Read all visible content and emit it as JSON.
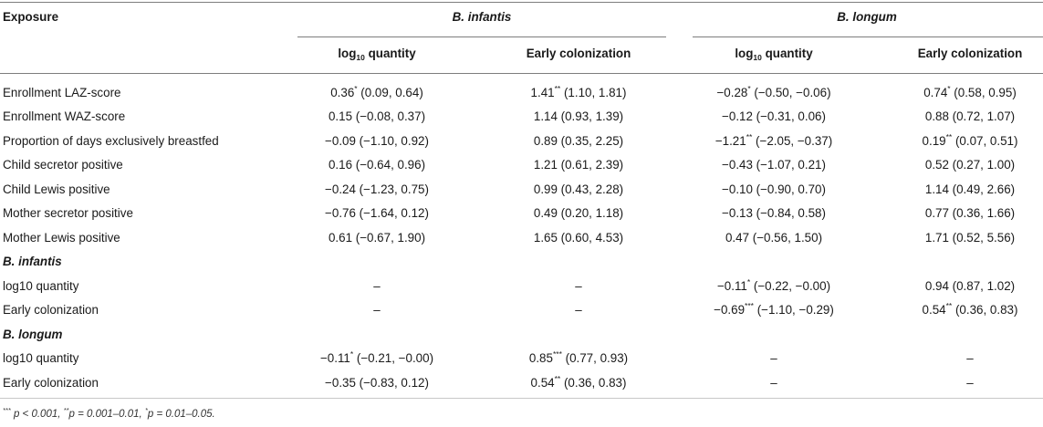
{
  "header": {
    "exposure_label": "Exposure",
    "group1": "B. infantis",
    "group2": "B. longum",
    "col_log_prefix": "log",
    "col_log_sub": "10",
    "col_log_suffix": " quantity",
    "col_early": "Early colonization"
  },
  "rows": [
    {
      "label": "Enrollment LAZ-score",
      "c1": {
        "v": "0.36",
        "s": "*",
        "ci": " (0.09, 0.64)"
      },
      "c2": {
        "v": "1.41",
        "s": "**",
        "ci": " (1.10, 1.81)"
      },
      "c3": {
        "v": "−0.28",
        "s": "*",
        "ci": " (−0.50, −0.06)"
      },
      "c4": {
        "v": "0.74",
        "s": "*",
        "ci": " (0.58, 0.95)"
      }
    },
    {
      "label": "Enrollment WAZ-score",
      "c1": {
        "v": "0.15 (−0.08, 0.37)",
        "s": "",
        "ci": ""
      },
      "c2": {
        "v": "1.14 (0.93, 1.39)",
        "s": "",
        "ci": ""
      },
      "c3": {
        "v": "−0.12 (−0.31, 0.06)",
        "s": "",
        "ci": ""
      },
      "c4": {
        "v": "0.88 (0.72, 1.07)",
        "s": "",
        "ci": ""
      }
    },
    {
      "label": "Proportion of days exclusively breastfed",
      "c1": {
        "v": "−0.09 (−1.10, 0.92)",
        "s": "",
        "ci": ""
      },
      "c2": {
        "v": "0.89 (0.35, 2.25)",
        "s": "",
        "ci": ""
      },
      "c3": {
        "v": "−1.21",
        "s": "**",
        "ci": " (−2.05, −0.37)"
      },
      "c4": {
        "v": "0.19",
        "s": "**",
        "ci": " (0.07, 0.51)"
      }
    },
    {
      "label": "Child secretor positive",
      "c1": {
        "v": "0.16 (−0.64, 0.96)",
        "s": "",
        "ci": ""
      },
      "c2": {
        "v": "1.21 (0.61, 2.39)",
        "s": "",
        "ci": ""
      },
      "c3": {
        "v": "−0.43 (−1.07, 0.21)",
        "s": "",
        "ci": ""
      },
      "c4": {
        "v": "0.52 (0.27, 1.00)",
        "s": "",
        "ci": ""
      }
    },
    {
      "label": "Child Lewis positive",
      "c1": {
        "v": "−0.24 (−1.23, 0.75)",
        "s": "",
        "ci": ""
      },
      "c2": {
        "v": "0.99 (0.43, 2.28)",
        "s": "",
        "ci": ""
      },
      "c3": {
        "v": "−0.10 (−0.90, 0.70)",
        "s": "",
        "ci": ""
      },
      "c4": {
        "v": "1.14 (0.49, 2.66)",
        "s": "",
        "ci": ""
      }
    },
    {
      "label": "Mother secretor positive",
      "c1": {
        "v": "−0.76 (−1.64, 0.12)",
        "s": "",
        "ci": ""
      },
      "c2": {
        "v": "0.49 (0.20, 1.18)",
        "s": "",
        "ci": ""
      },
      "c3": {
        "v": "−0.13 (−0.84, 0.58)",
        "s": "",
        "ci": ""
      },
      "c4": {
        "v": "0.77 (0.36, 1.66)",
        "s": "",
        "ci": ""
      }
    },
    {
      "label": "Mother Lewis positive",
      "c1": {
        "v": "0.61 (−0.67, 1.90)",
        "s": "",
        "ci": ""
      },
      "c2": {
        "v": "1.65 (0.60, 4.53)",
        "s": "",
        "ci": ""
      },
      "c3": {
        "v": "0.47 (−0.56, 1.50)",
        "s": "",
        "ci": ""
      },
      "c4": {
        "v": "1.71 (0.52, 5.56)",
        "s": "",
        "ci": ""
      }
    }
  ],
  "section_infantis": {
    "title": "B. infantis",
    "rows": [
      {
        "label": "log10 quantity",
        "c1": {
          "v": "–",
          "s": "",
          "ci": ""
        },
        "c2": {
          "v": "–",
          "s": "",
          "ci": ""
        },
        "c3": {
          "v": "−0.11",
          "s": "*",
          "ci": " (−0.22, −0.00)"
        },
        "c4": {
          "v": "0.94 (0.87, 1.02)",
          "s": "",
          "ci": ""
        }
      },
      {
        "label": "Early colonization",
        "c1": {
          "v": "–",
          "s": "",
          "ci": ""
        },
        "c2": {
          "v": "–",
          "s": "",
          "ci": ""
        },
        "c3": {
          "v": "−0.69",
          "s": "***",
          "ci": " (−1.10, −0.29)"
        },
        "c4": {
          "v": "0.54",
          "s": "**",
          "ci": " (0.36, 0.83)"
        }
      }
    ]
  },
  "section_longum": {
    "title": "B. longum",
    "rows": [
      {
        "label": "log10 quantity",
        "c1": {
          "v": "−0.11",
          "s": "*",
          "ci": " (−0.21, −0.00)"
        },
        "c2": {
          "v": "0.85",
          "s": "***",
          "ci": " (0.77, 0.93)"
        },
        "c3": {
          "v": "–",
          "s": "",
          "ci": ""
        },
        "c4": {
          "v": "–",
          "s": "",
          "ci": ""
        }
      },
      {
        "label": "Early colonization",
        "c1": {
          "v": "−0.35 (−0.83, 0.12)",
          "s": "",
          "ci": ""
        },
        "c2": {
          "v": "0.54",
          "s": "**",
          "ci": " (0.36, 0.83)"
        },
        "c3": {
          "v": "–",
          "s": "",
          "ci": ""
        },
        "c4": {
          "v": "–",
          "s": "",
          "ci": ""
        }
      }
    ]
  },
  "footnote": {
    "p1_star": "***",
    "p1_text": " p < 0.001, ",
    "p2_star": "**",
    "p2_text": "p = 0.001–0.01, ",
    "p3_star": "*",
    "p3_text": "p = 0.01–0.05."
  }
}
